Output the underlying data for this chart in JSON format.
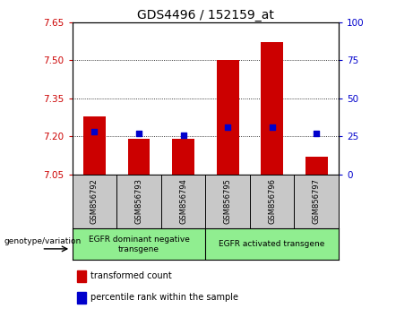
{
  "title": "GDS4496 / 152159_at",
  "samples": [
    "GSM856792",
    "GSM856793",
    "GSM856794",
    "GSM856795",
    "GSM856796",
    "GSM856797"
  ],
  "bar_values": [
    7.28,
    7.19,
    7.19,
    7.5,
    7.57,
    7.12
  ],
  "percentile_values": [
    28,
    27,
    26,
    31,
    31,
    27
  ],
  "ylim_left": [
    7.05,
    7.65
  ],
  "ylim_right": [
    0,
    100
  ],
  "yticks_left": [
    7.05,
    7.2,
    7.35,
    7.5,
    7.65
  ],
  "yticks_right": [
    0,
    25,
    50,
    75,
    100
  ],
  "grid_lines": [
    7.2,
    7.35,
    7.5
  ],
  "bar_color": "#cc0000",
  "percentile_color": "#0000cc",
  "bar_bottom": 7.05,
  "group1_label": "EGFR dominant negative\ntransgene",
  "group2_label": "EGFR activated transgene",
  "group_color": "#90ee90",
  "xlabel_area_color": "#c8c8c8",
  "legend_red_label": "transformed count",
  "legend_blue_label": "percentile rank within the sample",
  "genotype_label": "genotype/variation",
  "title_fontsize": 10,
  "axis_left_color": "#cc0000",
  "axis_right_color": "#0000cc"
}
